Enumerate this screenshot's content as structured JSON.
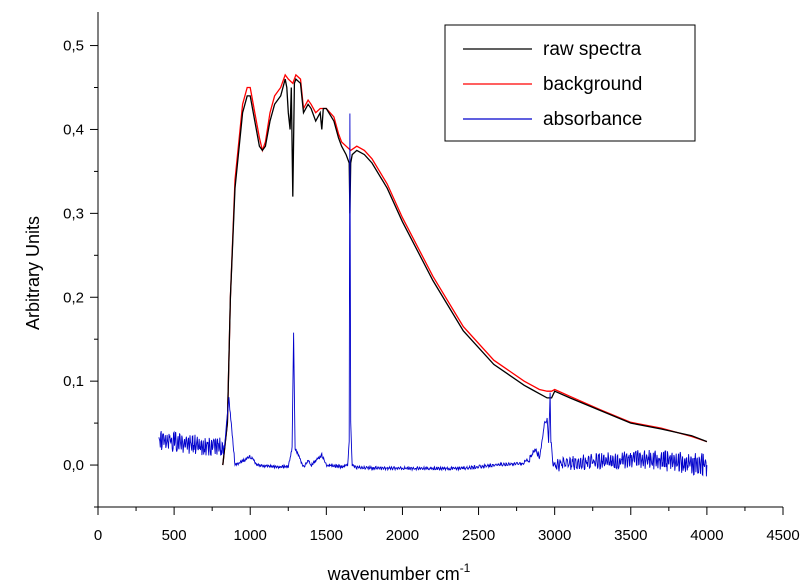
{
  "chart_data": {
    "type": "line",
    "xlabel": "wavenumber cm",
    "xlabel_superscript": "-1",
    "ylabel": "Arbitrary Units",
    "xlim": [
      0,
      4500
    ],
    "ylim": [
      -0.05,
      0.54
    ],
    "x_ticks": [
      "0",
      "500",
      "1000",
      "1500",
      "2000",
      "2500",
      "3000",
      "3500",
      "4000",
      "4500"
    ],
    "y_ticks": [
      "0,0",
      "0,1",
      "0,2",
      "0,3",
      "0,4",
      "0,5"
    ],
    "legend_position": "top-right",
    "grid": false,
    "series": [
      {
        "name": "raw spectra",
        "color": "#000000",
        "x": [
          820,
          850,
          870,
          900,
          950,
          980,
          1000,
          1030,
          1060,
          1080,
          1100,
          1130,
          1160,
          1200,
          1230,
          1240,
          1250,
          1262,
          1270,
          1280,
          1290,
          1300,
          1330,
          1350,
          1380,
          1400,
          1430,
          1460,
          1470,
          1480,
          1500,
          1550,
          1580,
          1600,
          1630,
          1650,
          1655,
          1660,
          1670,
          1700,
          1750,
          1800,
          1900,
          2000,
          2200,
          2400,
          2600,
          2800,
          2850,
          2900,
          2950,
          2980,
          3000,
          3100,
          3300,
          3500,
          3700,
          3900,
          4000
        ],
        "y": [
          0.0,
          0.05,
          0.2,
          0.33,
          0.42,
          0.44,
          0.44,
          0.41,
          0.38,
          0.375,
          0.38,
          0.41,
          0.43,
          0.44,
          0.46,
          0.45,
          0.42,
          0.4,
          0.45,
          0.32,
          0.455,
          0.46,
          0.455,
          0.42,
          0.43,
          0.425,
          0.41,
          0.42,
          0.4,
          0.425,
          0.425,
          0.41,
          0.39,
          0.38,
          0.37,
          0.36,
          0.3,
          0.36,
          0.37,
          0.375,
          0.37,
          0.36,
          0.33,
          0.29,
          0.22,
          0.16,
          0.12,
          0.095,
          0.09,
          0.085,
          0.08,
          0.08,
          0.088,
          0.08,
          0.065,
          0.05,
          0.043,
          0.035,
          0.028
        ]
      },
      {
        "name": "background",
        "color": "#ff0000",
        "x": [
          820,
          850,
          870,
          900,
          950,
          980,
          1000,
          1030,
          1060,
          1080,
          1100,
          1130,
          1160,
          1200,
          1230,
          1250,
          1280,
          1300,
          1330,
          1350,
          1380,
          1400,
          1430,
          1460,
          1500,
          1550,
          1580,
          1600,
          1630,
          1660,
          1700,
          1750,
          1800,
          1900,
          2000,
          2200,
          2400,
          2600,
          2800,
          2850,
          2900,
          2950,
          2980,
          3000,
          3100,
          3300,
          3500,
          3700,
          3900,
          4000
        ],
        "y": [
          0.0,
          0.05,
          0.2,
          0.34,
          0.43,
          0.45,
          0.45,
          0.42,
          0.39,
          0.375,
          0.385,
          0.42,
          0.44,
          0.45,
          0.465,
          0.46,
          0.455,
          0.465,
          0.46,
          0.425,
          0.435,
          0.43,
          0.42,
          0.425,
          0.425,
          0.415,
          0.395,
          0.385,
          0.38,
          0.375,
          0.38,
          0.375,
          0.365,
          0.335,
          0.295,
          0.225,
          0.165,
          0.125,
          0.1,
          0.095,
          0.09,
          0.088,
          0.088,
          0.09,
          0.082,
          0.066,
          0.051,
          0.044,
          0.034,
          0.028
        ]
      },
      {
        "name": "absorbance",
        "color": "#0000cc",
        "x": [
          400,
          830,
          860,
          900,
          1000,
          1050,
          1150,
          1250,
          1275,
          1285,
          1295,
          1350,
          1380,
          1400,
          1470,
          1500,
          1600,
          1640,
          1650,
          1655,
          1660,
          1670,
          1700,
          2000,
          2400,
          2600,
          2800,
          2850,
          2870,
          2900,
          2935,
          2950,
          2960,
          2970,
          2975,
          2990,
          3100,
          3300,
          3600,
          4000
        ],
        "y": [
          0.03,
          0.02,
          0.08,
          0.0,
          0.01,
          0.0,
          -0.002,
          -0.002,
          0.02,
          0.158,
          0.02,
          -0.002,
          0.005,
          0.0,
          0.012,
          0.0,
          -0.002,
          0.0,
          0.03,
          0.42,
          0.05,
          0.0,
          -0.003,
          -0.004,
          -0.004,
          0.0,
          0.002,
          0.01,
          0.02,
          0.01,
          0.05,
          0.055,
          0.03,
          0.085,
          0.03,
          0.0,
          0.002,
          0.005,
          0.007,
          0.0
        ]
      }
    ]
  }
}
